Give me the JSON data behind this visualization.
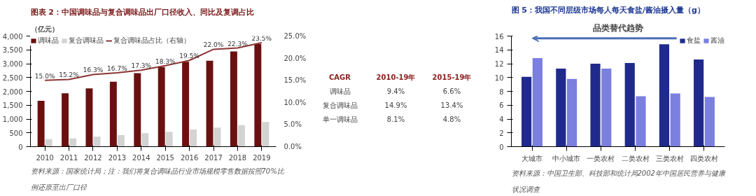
{
  "chart_data": [
    {
      "type": "bar",
      "title": "图表 2：中国调味品与复合调味品出厂口径收入、同比及复调占比",
      "ylabel": "（亿元）",
      "categories": [
        "2010",
        "2011",
        "2012",
        "2013",
        "2014",
        "2015",
        "2016",
        "2017",
        "2018",
        "2019"
      ],
      "series": [
        {
          "name": "调味品",
          "color": "#6b1010",
          "values": [
            1660,
            1930,
            2110,
            2350,
            2660,
            2880,
            3070,
            3110,
            3440,
            3710
          ]
        },
        {
          "name": "复合调味品",
          "color": "#d3d3d3",
          "values": [
            270,
            300,
            360,
            420,
            490,
            540,
            620,
            690,
            780,
            890
          ]
        },
        {
          "name": "复合调味品占比（右轴）",
          "type": "line",
          "axis": "y2",
          "color": "#8b3535",
          "values": [
            15.0,
            15.2,
            16.3,
            16.7,
            17.3,
            18.3,
            19.5,
            22.0,
            22.3,
            23.5
          ],
          "value_labels": [
            "15.0%",
            "15.2%",
            "16.3%",
            "16.7%",
            "17.3%",
            "18.3%",
            "19.5%",
            "22.0%",
            "22.3%",
            "23.5%"
          ]
        }
      ],
      "ylim": [
        0,
        4000
      ],
      "yticks": [
        0,
        500,
        {
          "value": 1000,
          "label": "1,000"
        },
        {
          "value": 1500,
          "label": "1,500"
        },
        {
          "value": 2000,
          "label": "2,000"
        },
        {
          "value": 2500,
          "label": "2,500"
        },
        {
          "value": 3000,
          "label": "3,000"
        },
        {
          "value": 3500,
          "label": "3,500"
        },
        {
          "value": 4000,
          "label": "4,000"
        }
      ],
      "y2lim": [
        0,
        25
      ],
      "y2ticks": [
        {
          "value": 0,
          "label": "0.0%"
        },
        {
          "value": 5,
          "label": "5.0%"
        },
        {
          "value": 10,
          "label": "10.0%"
        },
        {
          "value": 15,
          "label": "15.0%"
        },
        {
          "value": 20,
          "label": "20.0%"
        },
        {
          "value": 25,
          "label": "25.0%"
        }
      ],
      "grid": false,
      "legend": "top",
      "annotations": [
        "资料来源：国家统计局；注：我们将复合调味品行业市场规模零售数据按照70%比例还原至出厂口径"
      ]
    },
    {
      "type": "other",
      "annotations": [
        "CAGR",
        "2010-19年",
        "2015-19年",
        "调味品",
        "9.4%",
        "6.6%",
        "复合调味品",
        "14.9%",
        "13.4%",
        "单一调味品",
        "8.1%",
        "4.8%"
      ]
    },
    {
      "type": "bar",
      "title": "图 5：我国不同层级市场每人每天食盐/酱油摄入量（g）",
      "categories": [
        "大城市",
        "中小城市",
        "一类农村",
        "二类农村",
        "三类农村",
        "四类农村"
      ],
      "series": [
        {
          "name": "食盐",
          "color": "#1f2a8c",
          "values": [
            10.1,
            11.3,
            12.0,
            12.1,
            14.8,
            12.6
          ]
        },
        {
          "name": "酱油",
          "color": "#7b7fe0",
          "values": [
            12.8,
            9.8,
            11.3,
            7.3,
            7.7,
            7.2
          ]
        }
      ],
      "ylim": [
        0,
        16
      ],
      "yticks": [
        0,
        2,
        4,
        6,
        8,
        10,
        12,
        14,
        16
      ],
      "grid": false,
      "legend": "top",
      "annotations": [
        {
          "text": "品类替代趋势"
        },
        "资料来源：中国卫生部、科技部和统计局2002年中国居民营养与健康状况调查"
      ]
    }
  ]
}
